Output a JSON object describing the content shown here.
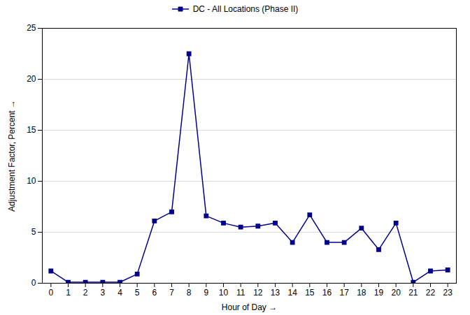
{
  "chart_data": {
    "type": "line",
    "x": [
      0,
      1,
      2,
      3,
      4,
      5,
      6,
      7,
      8,
      9,
      10,
      11,
      12,
      13,
      14,
      15,
      16,
      17,
      18,
      19,
      20,
      21,
      22,
      23
    ],
    "series": [
      {
        "name": "DC - All Locations (Phase II)",
        "color": "#00008B",
        "marker": "square",
        "values": [
          1.2,
          0.1,
          0.1,
          0.1,
          0.1,
          0.9,
          6.1,
          7.0,
          22.5,
          6.6,
          5.9,
          5.5,
          5.6,
          5.9,
          4.0,
          6.7,
          4.0,
          4.0,
          5.4,
          3.3,
          5.9,
          0.1,
          1.2,
          1.3
        ]
      }
    ],
    "xlabel": "Hour of Day",
    "ylabel": "Adjustment Factor, Percent",
    "xlim": [
      -0.5,
      23.5
    ],
    "ylim": [
      0,
      25
    ],
    "xticks": [
      0,
      1,
      2,
      3,
      4,
      5,
      6,
      7,
      8,
      9,
      10,
      11,
      12,
      13,
      14,
      15,
      16,
      17,
      18,
      19,
      20,
      21,
      22,
      23
    ],
    "yticks": [
      0,
      5,
      10,
      15,
      20,
      25
    ],
    "grid": "y",
    "legend": "top"
  }
}
